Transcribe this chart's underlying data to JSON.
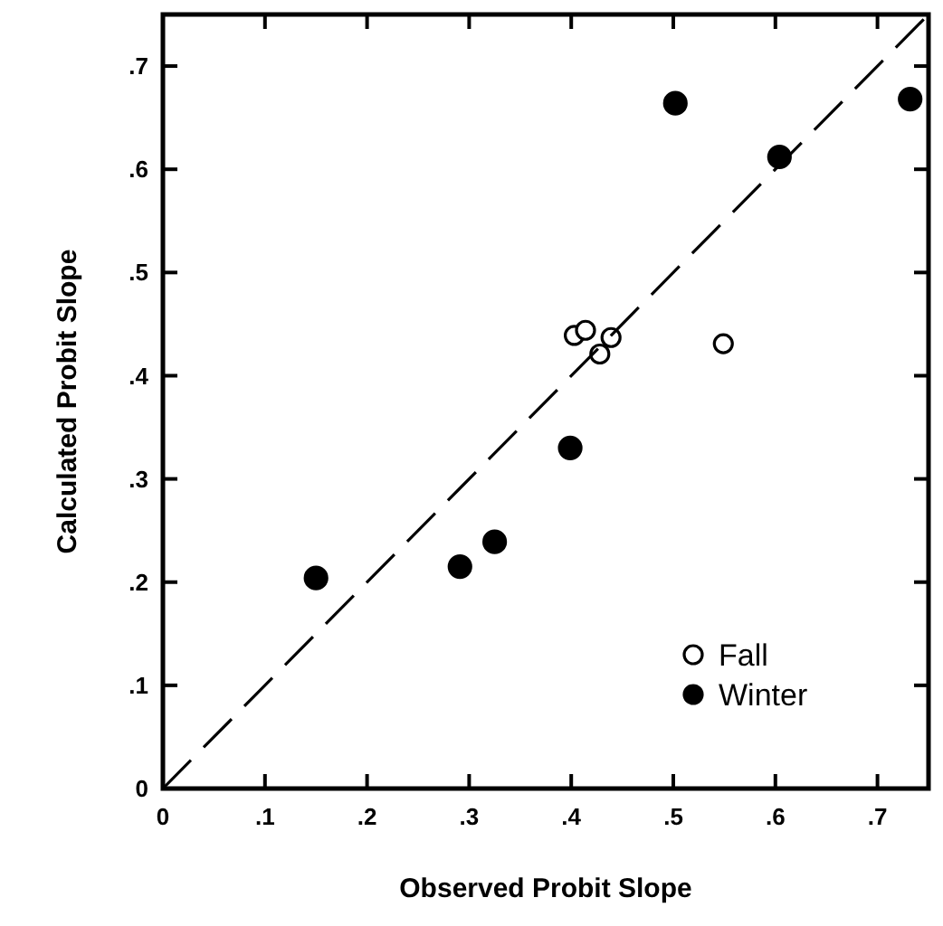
{
  "chart_data": {
    "type": "scatter",
    "xlabel": "Observed Probit Slope",
    "ylabel": "Calculated Probit Slope",
    "xlim": [
      0,
      0.75
    ],
    "ylim": [
      0,
      0.75
    ],
    "xticks": [
      0,
      {
        "value": 0.1,
        "label": ".1"
      },
      {
        "value": 0.2,
        "label": ".2"
      },
      {
        "value": 0.3,
        "label": ".3"
      },
      {
        "value": 0.4,
        "label": ".4"
      },
      {
        "value": 0.5,
        "label": ".5"
      },
      {
        "value": 0.6,
        "label": ".6"
      },
      {
        "value": 0.7,
        "label": ".7"
      }
    ],
    "yticks": [
      0,
      {
        "value": 0.1,
        "label": ".1"
      },
      {
        "value": 0.2,
        "label": ".2"
      },
      {
        "value": 0.3,
        "label": ".3"
      },
      {
        "value": 0.4,
        "label": ".4"
      },
      {
        "value": 0.5,
        "label": ".5"
      },
      {
        "value": 0.6,
        "label": ".6"
      },
      {
        "value": 0.7,
        "label": ".7"
      }
    ],
    "grid": false,
    "legend": "bottom right",
    "marker": "circle",
    "series": [
      {
        "name": "Fall",
        "color": "#ffffff",
        "x": [
          0.403,
          0.414,
          0.428,
          0.439,
          0.549
        ],
        "values": [
          0.439,
          0.444,
          0.421,
          0.437,
          0.431
        ]
      },
      {
        "name": "Winter",
        "color": "#000000",
        "x": [
          0.15,
          0.291,
          0.325,
          0.399,
          0.502,
          0.604,
          0.732
        ],
        "values": [
          0.204,
          0.215,
          0.239,
          0.33,
          0.664,
          0.612,
          0.668
        ]
      },
      {
        "type": "line",
        "color": "#000000",
        "line_style": "dashed",
        "marker": "none",
        "x": [
          0,
          0.75
        ],
        "values": [
          0,
          0.75
        ]
      }
    ]
  }
}
